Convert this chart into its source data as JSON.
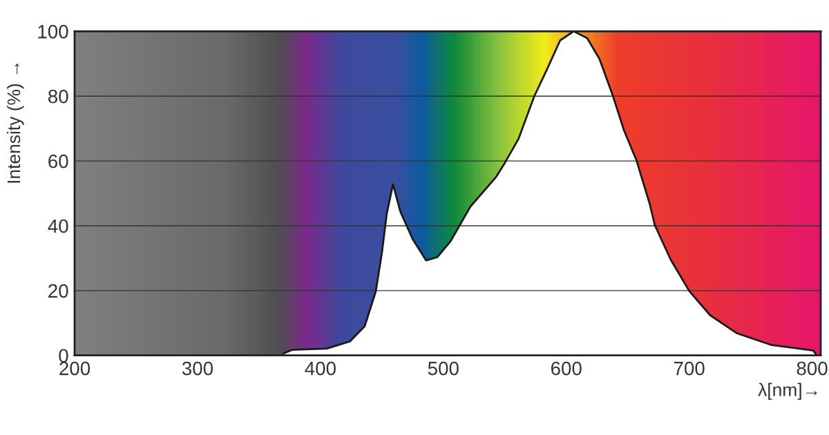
{
  "chart_data": {
    "type": "area",
    "xlabel": "λ[nm]→",
    "ylabel": "Intensity (%) →",
    "x": [
      370,
      377,
      405,
      424,
      436,
      445,
      450,
      454,
      459,
      465,
      475,
      486,
      495,
      506,
      522,
      543,
      550,
      561,
      574,
      584,
      595,
      606,
      617,
      627,
      638,
      647,
      657,
      668,
      672,
      685,
      700,
      717,
      739,
      767,
      801,
      803
    ],
    "series": [
      {
        "color": "#ffffff",
        "values": [
          0.6,
          1.7,
          2.1,
          4.3,
          9,
          19.7,
          31.6,
          43.8,
          52.8,
          44.4,
          35.9,
          29.3,
          30.3,
          35.3,
          45.9,
          55.1,
          59.4,
          66.7,
          80,
          88,
          97.2,
          100,
          97.9,
          91.5,
          80,
          69.4,
          60.3,
          46.6,
          40.2,
          29.5,
          19.9,
          12.4,
          6.8,
          3.2,
          1.5,
          0.4
        ]
      }
    ],
    "xlim": [
      200,
      807
    ],
    "ylim": [
      0,
      100
    ],
    "xticks": [
      200,
      300,
      400,
      500,
      600,
      700,
      800
    ],
    "yticks": [
      0,
      20,
      40,
      60,
      80,
      100
    ],
    "grid": "y",
    "legend": false
  }
}
